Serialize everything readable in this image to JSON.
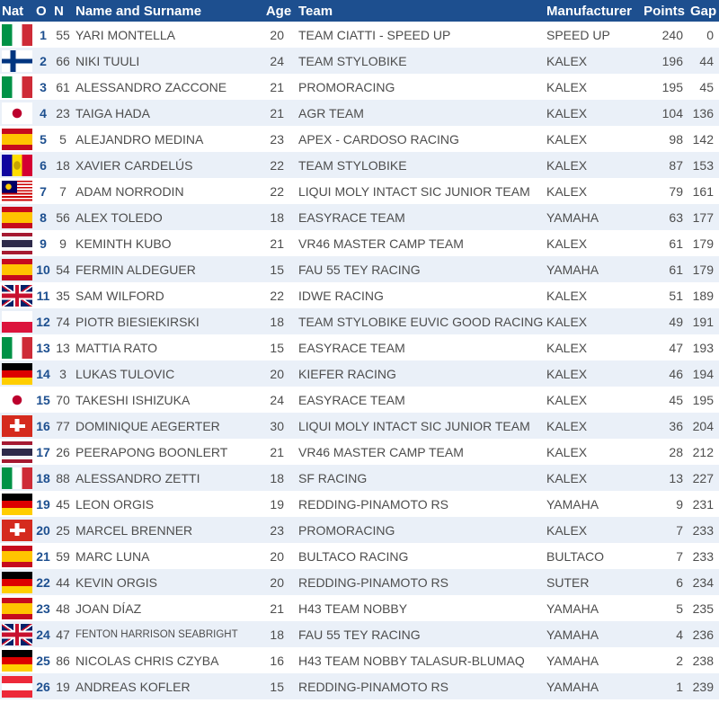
{
  "columns": {
    "nat": "Nat",
    "pos": "O",
    "num": "N",
    "name": "Name and Surname",
    "age": "Age",
    "team": "Team",
    "manufacturer": "Manufacturer",
    "points": "Points",
    "gap": "Gap"
  },
  "colors": {
    "header_bg": "#1d4f8f",
    "header_text": "#ffffff",
    "row_alt_bg": "#eaf0f8",
    "position_text": "#1d4f8f",
    "body_text": "#4d4d4d"
  },
  "rows": [
    {
      "flag": "italy-flag-icon",
      "pos": "1",
      "num": "55",
      "name": "YARI MONTELLA",
      "age": "20",
      "team": "TEAM CIATTI - SPEED UP",
      "manufacturer": "SPEED UP",
      "points": "240",
      "gap": "0"
    },
    {
      "flag": "finland-flag-icon",
      "pos": "2",
      "num": "66",
      "name": "NIKI TUULI",
      "age": "24",
      "team": "TEAM STYLOBIKE",
      "manufacturer": "KALEX",
      "points": "196",
      "gap": "44"
    },
    {
      "flag": "italy-flag-icon",
      "pos": "3",
      "num": "61",
      "name": "ALESSANDRO ZACCONE",
      "age": "21",
      "team": "PROMORACING",
      "manufacturer": "KALEX",
      "points": "195",
      "gap": "45"
    },
    {
      "flag": "japan-flag-icon",
      "pos": "4",
      "num": "23",
      "name": "TAIGA HADA",
      "age": "21",
      "team": "AGR TEAM",
      "manufacturer": "KALEX",
      "points": "104",
      "gap": "136"
    },
    {
      "flag": "spain-flag-icon",
      "pos": "5",
      "num": "5",
      "name": "ALEJANDRO MEDINA",
      "age": "23",
      "team": "APEX - CARDOSO RACING",
      "manufacturer": "KALEX",
      "points": "98",
      "gap": "142"
    },
    {
      "flag": "andorra-flag-icon",
      "pos": "6",
      "num": "18",
      "name": "XAVIER CARDELÚS",
      "age": "22",
      "team": "TEAM STYLOBIKE",
      "manufacturer": "KALEX",
      "points": "87",
      "gap": "153"
    },
    {
      "flag": "malaysia-flag-icon",
      "pos": "7",
      "num": "7",
      "name": "ADAM NORRODIN",
      "age": "22",
      "team": "LIQUI MOLY INTACT SIC JUNIOR TEAM",
      "manufacturer": "KALEX",
      "points": "79",
      "gap": "161"
    },
    {
      "flag": "spain-flag-icon",
      "pos": "8",
      "num": "56",
      "name": "ALEX TOLEDO",
      "age": "18",
      "team": "EASYRACE TEAM",
      "manufacturer": "YAMAHA",
      "points": "63",
      "gap": "177"
    },
    {
      "flag": "thailand-flag-icon",
      "pos": "9",
      "num": "9",
      "name": "KEMINTH KUBO",
      "age": "21",
      "team": "VR46 MASTER CAMP TEAM",
      "manufacturer": "KALEX",
      "points": "61",
      "gap": "179"
    },
    {
      "flag": "spain-flag-icon",
      "pos": "10",
      "num": "54",
      "name": "FERMIN ALDEGUER",
      "age": "15",
      "team": "FAU 55 TEY RACING",
      "manufacturer": "YAMAHA",
      "points": "61",
      "gap": "179"
    },
    {
      "flag": "uk-flag-icon",
      "pos": "11",
      "num": "35",
      "name": "SAM WILFORD",
      "age": "22",
      "team": "IDWE RACING",
      "manufacturer": "KALEX",
      "points": "51",
      "gap": "189"
    },
    {
      "flag": "poland-flag-icon",
      "pos": "12",
      "num": "74",
      "name": "PIOTR BIESIEKIRSKI",
      "age": "18",
      "team": "TEAM STYLOBIKE EUVIC GOOD RACING",
      "manufacturer": "KALEX",
      "points": "49",
      "gap": "191"
    },
    {
      "flag": "italy-flag-icon",
      "pos": "13",
      "num": "13",
      "name": "MATTIA RATO",
      "age": "15",
      "team": "EASYRACE TEAM",
      "manufacturer": "KALEX",
      "points": "47",
      "gap": "193"
    },
    {
      "flag": "germany-flag-icon",
      "pos": "14",
      "num": "3",
      "name": "LUKAS TULOVIC",
      "age": "20",
      "team": "KIEFER RACING",
      "manufacturer": "KALEX",
      "points": "46",
      "gap": "194"
    },
    {
      "flag": "japan-flag-icon",
      "pos": "15",
      "num": "70",
      "name": "TAKESHI ISHIZUKA",
      "age": "24",
      "team": "EASYRACE TEAM",
      "manufacturer": "KALEX",
      "points": "45",
      "gap": "195"
    },
    {
      "flag": "switzerland-flag-icon",
      "pos": "16",
      "num": "77",
      "name": "DOMINIQUE AEGERTER",
      "age": "30",
      "team": "LIQUI MOLY INTACT SIC JUNIOR TEAM",
      "manufacturer": "KALEX",
      "points": "36",
      "gap": "204"
    },
    {
      "flag": "thailand-flag-icon",
      "pos": "17",
      "num": "26",
      "name": "PEERAPONG BOONLERT",
      "age": "21",
      "team": "VR46 MASTER CAMP TEAM",
      "manufacturer": "KALEX",
      "points": "28",
      "gap": "212"
    },
    {
      "flag": "italy-flag-icon",
      "pos": "18",
      "num": "88",
      "name": "ALESSANDRO ZETTI",
      "age": "18",
      "team": "SF RACING",
      "manufacturer": "KALEX",
      "points": "13",
      "gap": "227"
    },
    {
      "flag": "germany-flag-icon",
      "pos": "19",
      "num": "45",
      "name": "LEON ORGIS",
      "age": "19",
      "team": "REDDING-PINAMOTO RS",
      "manufacturer": "YAMAHA",
      "points": "9",
      "gap": "231"
    },
    {
      "flag": "switzerland-flag-icon",
      "pos": "20",
      "num": "25",
      "name": "MARCEL BRENNER",
      "age": "23",
      "team": "PROMORACING",
      "manufacturer": "KALEX",
      "points": "7",
      "gap": "233"
    },
    {
      "flag": "spain-flag-icon",
      "pos": "21",
      "num": "59",
      "name": "MARC LUNA",
      "age": "20",
      "team": "BULTACO RACING",
      "manufacturer": "BULTACO",
      "points": "7",
      "gap": "233"
    },
    {
      "flag": "germany-flag-icon",
      "pos": "22",
      "num": "44",
      "name": "KEVIN ORGIS",
      "age": "20",
      "team": "REDDING-PINAMOTO RS",
      "manufacturer": "SUTER",
      "points": "6",
      "gap": "234"
    },
    {
      "flag": "spain-flag-icon",
      "pos": "23",
      "num": "48",
      "name": "JOAN DÍAZ",
      "age": "21",
      "team": "H43 TEAM NOBBY",
      "manufacturer": "YAMAHA",
      "points": "5",
      "gap": "235"
    },
    {
      "flag": "uk-flag-icon",
      "pos": "24",
      "num": "47",
      "name": "FENTON HARRISON SEABRIGHT",
      "age": "18",
      "team": "FAU 55 TEY RACING",
      "manufacturer": "YAMAHA",
      "points": "4",
      "gap": "236"
    },
    {
      "flag": "germany-flag-icon",
      "pos": "25",
      "num": "86",
      "name": "NICOLAS CHRIS CZYBA",
      "age": "16",
      "team": "H43 TEAM NOBBY TALASUR-BLUMAQ",
      "manufacturer": "YAMAHA",
      "points": "2",
      "gap": "238"
    },
    {
      "flag": "austria-flag-icon",
      "pos": "26",
      "num": "19",
      "name": "ANDREAS KOFLER",
      "age": "15",
      "team": "REDDING-PINAMOTO RS",
      "manufacturer": "YAMAHA",
      "points": "1",
      "gap": "239"
    }
  ]
}
